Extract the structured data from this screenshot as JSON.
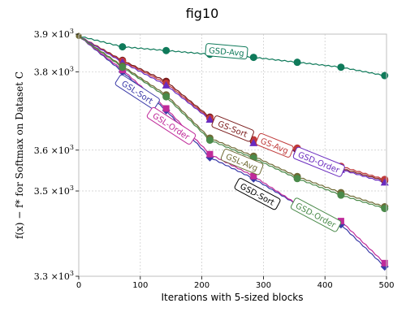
{
  "chart_data": {
    "type": "line",
    "title": "fig10",
    "xlabel": "Iterations with 5-sized blocks",
    "ylabel": "f(x) − f* for Softmax on Dataset C",
    "xlim": [
      0,
      500
    ],
    "ylim_log": [
      3300,
      3900
    ],
    "xticks": [
      0,
      100,
      200,
      300,
      400,
      500
    ],
    "xtick_labels": [
      "0",
      "100",
      "200",
      "300",
      "400",
      "500"
    ],
    "yticks": [
      3300,
      3500,
      3600,
      3800,
      3900
    ],
    "ytick_mantissa": [
      "3.3",
      "3.5",
      "3.6",
      "3.8",
      "3.9"
    ],
    "ytick_times": "×10",
    "ytick_exp": "3",
    "grid": true,
    "marker_x": [
      0,
      71,
      142,
      213,
      284,
      355,
      426,
      497
    ],
    "series": [
      {
        "name": "GSD-Avg",
        "color": "#0f7a5a",
        "marker": "circle",
        "values": [
          3895,
          3866,
          3856,
          3846,
          3838,
          3825,
          3812,
          3790
        ]
      },
      {
        "name": "GSL-Sort",
        "color": "#3a3aa8",
        "marker": "diamond",
        "values": [
          3895,
          3800,
          3700,
          3582,
          3530,
          3467,
          3420,
          3322
        ]
      },
      {
        "name": "GSL-Order",
        "color": "#c02a9a",
        "marker": "square",
        "values": [
          3895,
          3805,
          3705,
          3590,
          3536,
          3468,
          3428,
          3330
        ]
      },
      {
        "name": "GS-Sort",
        "color": "#7a1a1a",
        "marker": "circle",
        "values": [
          3895,
          3830,
          3775,
          3683,
          3621,
          3600,
          3555,
          3525
        ]
      },
      {
        "name": "GS-Avg",
        "color": "#c03a3a",
        "marker": "circle",
        "values": [
          3895,
          3828,
          3770,
          3680,
          3626,
          3605,
          3560,
          3528
        ]
      },
      {
        "name": "GSD-Sort",
        "color": "#6a2bbf",
        "marker": "triangle",
        "values": [
          3895,
          3825,
          3765,
          3677,
          3618,
          3597,
          3552,
          3521
        ]
      },
      {
        "name": "GSL-Avg",
        "color": "#6f6a35",
        "marker": "circle",
        "values": [
          3895,
          3815,
          3740,
          3630,
          3585,
          3535,
          3496,
          3462
        ]
      },
      {
        "name": "GSD-Order",
        "color": "#4a8a4a",
        "marker": "circle",
        "values": [
          3895,
          3812,
          3735,
          3625,
          3580,
          3530,
          3490,
          3458
        ]
      }
    ],
    "annotations": [
      {
        "text": "GSD-Avg",
        "x": 240,
        "y": 3853,
        "color": "#0f7a5a",
        "rotate": 5
      },
      {
        "text": "GSL-Sort",
        "x": 95,
        "y": 3747,
        "color": "#3a3aa8",
        "rotate": 33
      },
      {
        "text": "GSL-Order",
        "x": 150,
        "y": 3660,
        "color": "#c02a9a",
        "rotate": 33
      },
      {
        "text": "GS-Sort",
        "x": 250,
        "y": 3653,
        "color": "#7a1a1a",
        "rotate": 22
      },
      {
        "text": "GS-Avg",
        "x": 318,
        "y": 3611,
        "color": "#c03a3a",
        "rotate": 22
      },
      {
        "text": "GSD-Order",
        "x": 390,
        "y": 3570,
        "color": "#6a2bbf",
        "rotate": 22
      },
      {
        "text": "GSL-Avg",
        "x": 265,
        "y": 3570,
        "color": "#6f6a35",
        "rotate": 22
      },
      {
        "text": "GSD-Sort",
        "x": 290,
        "y": 3492,
        "color": "#000000",
        "rotate": 28
      },
      {
        "text": "GSD-Order",
        "x": 385,
        "y": 3442,
        "color": "#4a8a4a",
        "rotate": 28
      }
    ]
  }
}
